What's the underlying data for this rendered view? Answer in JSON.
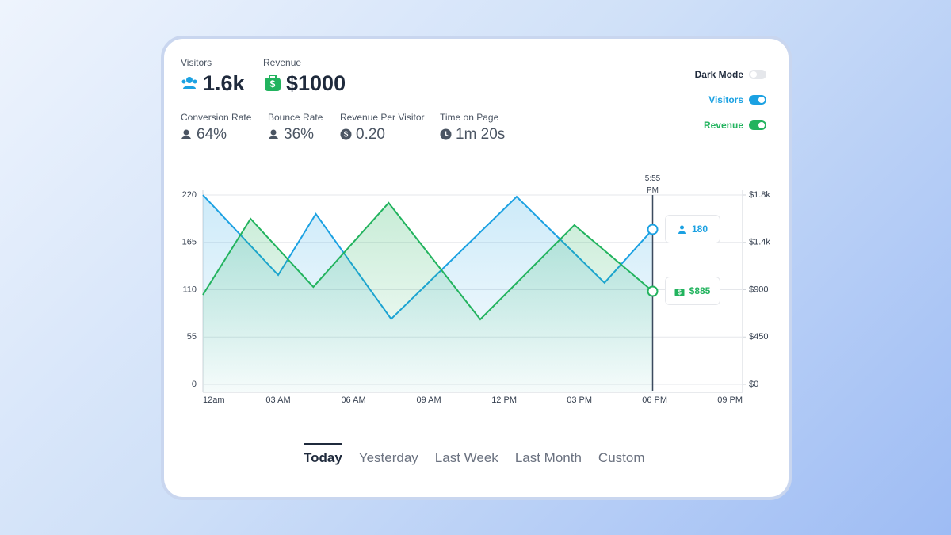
{
  "stats": [
    {
      "label": "Visitors",
      "value": "1.6k"
    },
    {
      "label": "Revenue",
      "value": "$1000"
    }
  ],
  "metrics": [
    {
      "label": "Conversion Rate",
      "value": "64%"
    },
    {
      "label": "Bounce Rate",
      "value": "36%"
    },
    {
      "label": "Revenue Per Visitor",
      "value": "0.20"
    },
    {
      "label": "Time on Page",
      "value": "1m 20s"
    }
  ],
  "toggles": [
    {
      "label": "Dark Mode",
      "on": false
    },
    {
      "label": "Visitors",
      "on": true
    },
    {
      "label": "Revenue",
      "on": true
    }
  ],
  "tabs": [
    "Today",
    "Yesterday",
    "Last Week",
    "Last Month",
    "Custom"
  ],
  "active_tab": 0,
  "chart_data": {
    "type": "line",
    "hover_label": "5:55 PM",
    "xlim": [
      0,
      21.5
    ],
    "xticks": [
      {
        "value": 0,
        "label": "12am"
      },
      {
        "value": 3,
        "label": "03 AM"
      },
      {
        "value": 6,
        "label": "06 AM"
      },
      {
        "value": 9,
        "label": "09 AM"
      },
      {
        "value": 12,
        "label": "12 PM"
      },
      {
        "value": 15,
        "label": "03 PM"
      },
      {
        "value": 18,
        "label": "06 PM"
      },
      {
        "value": 21,
        "label": "09 PM"
      }
    ],
    "ylim": [
      0,
      220
    ],
    "yticks": [
      0,
      55,
      110,
      165,
      220
    ],
    "y2lim": [
      0,
      1800
    ],
    "y2ticks": [
      {
        "value": 0,
        "label": "$0"
      },
      {
        "value": 450,
        "label": "$450"
      },
      {
        "value": 900,
        "label": "$900"
      },
      {
        "value": 1350,
        "label": "$1.4k"
      },
      {
        "value": 1800,
        "label": "$1.8k"
      }
    ],
    "grid": true,
    "series": [
      {
        "name": "Visitors",
        "color": "#1ba1e2",
        "axis": "y",
        "x": [
          0,
          3,
          4.5,
          7.5,
          12.5,
          16,
          17.917
        ],
        "values": [
          220,
          127,
          198,
          76,
          218,
          118,
          180
        ]
      },
      {
        "name": "Revenue",
        "color": "#22b35e",
        "axis": "y2",
        "x": [
          0,
          1.9,
          4.4,
          7.4,
          11.05,
          14.8,
          17.917
        ],
        "values": [
          851,
          1574,
          926,
          1725,
          618,
          1514,
          885
        ],
        "value_labels": [
          null,
          null,
          null,
          null,
          null,
          null,
          "$885"
        ]
      }
    ]
  }
}
